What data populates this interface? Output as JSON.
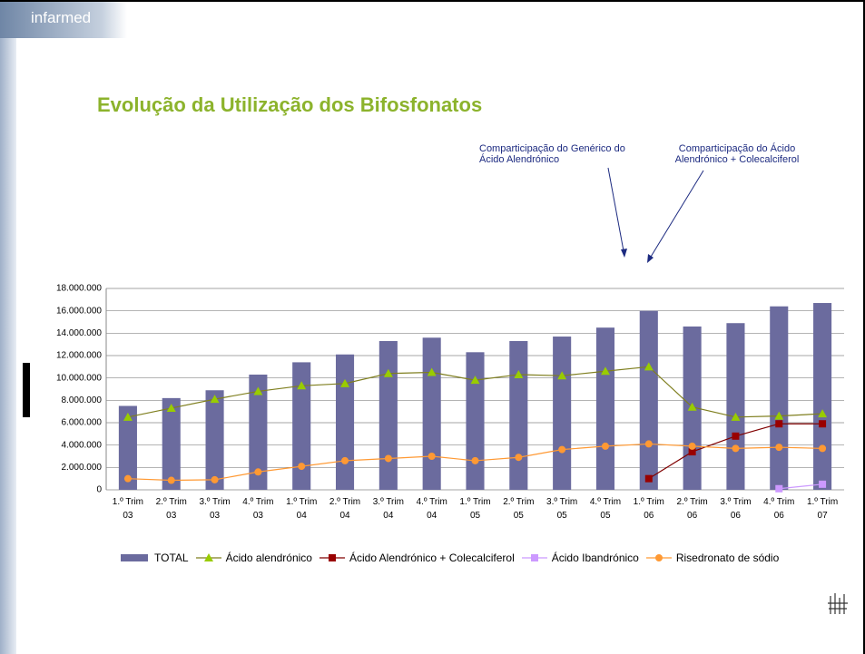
{
  "header": {
    "logo": "infarmed"
  },
  "chart_data": {
    "type": "bar_line",
    "title": "Evolução da Utilização dos Bifosfonatos",
    "annotations": [
      "Comparticipação do Genérico do Ácido Alendrónico",
      "Comparticipação do Ácido Alendrónico + Colecalciferol"
    ],
    "categories": [
      "1.º Trim 03",
      "2.º Trim 03",
      "3.º Trim 03",
      "4.º Trim 03",
      "1.º Trim 04",
      "2.º Trim 04",
      "3.º Trim 04",
      "4.º Trim 04",
      "1.º Trim 05",
      "2.º Trim 05",
      "3.º Trim 05",
      "4.º Trim 05",
      "1.º Trim 06",
      "2.º Trim 06",
      "3.º Trim 06",
      "4.º Trim 06",
      "1.º Trim 07"
    ],
    "ylim": [
      0,
      18000000
    ],
    "yticks": [
      0,
      {
        "value": 2000000,
        "label": "2.000.000"
      },
      {
        "value": 4000000,
        "label": "4.000.000"
      },
      {
        "value": 6000000,
        "label": "6.000.000"
      },
      {
        "value": 8000000,
        "label": "8.000.000"
      },
      {
        "value": 10000000,
        "label": "10.000.000"
      },
      {
        "value": 12000000,
        "label": "12.000.000"
      },
      {
        "value": 14000000,
        "label": "14.000.000"
      },
      {
        "value": 16000000,
        "label": "16.000.000"
      },
      {
        "value": 18000000,
        "label": "18.000.000"
      }
    ],
    "grid": true,
    "series": [
      {
        "name": "TOTAL",
        "type": "bar",
        "color": "#6b6b9e",
        "values": [
          7500000,
          8200000,
          8900000,
          10300000,
          11400000,
          12100000,
          13300000,
          13600000,
          12300000,
          13300000,
          13700000,
          14500000,
          16000000,
          14600000,
          14900000,
          16400000,
          16700000
        ]
      },
      {
        "name": "Ácido alendrónico",
        "type": "line",
        "marker": "triangle",
        "color": "#7f7f1f",
        "marker_color": "#99cc00",
        "values": [
          6500000,
          7300000,
          8100000,
          8800000,
          9300000,
          9500000,
          10400000,
          10500000,
          9800000,
          10300000,
          10200000,
          10600000,
          11000000,
          7400000,
          6500000,
          6600000,
          6800000
        ]
      },
      {
        "name": "Ácido Alendrónico + Colecalciferol",
        "type": "line",
        "marker": "square",
        "color": "#800000",
        "marker_color": "#990000",
        "values": [
          null,
          null,
          null,
          null,
          null,
          null,
          null,
          null,
          null,
          null,
          null,
          null,
          1000000,
          3400000,
          4800000,
          5900000,
          5900000
        ]
      },
      {
        "name": "Ácido Ibandrónico",
        "type": "line",
        "marker": "square",
        "color": "#cc99ff",
        "marker_color": "#cc99ff",
        "values": [
          null,
          null,
          null,
          null,
          null,
          null,
          null,
          null,
          null,
          null,
          null,
          null,
          null,
          null,
          null,
          100000,
          500000
        ]
      },
      {
        "name": "Risedronato de sódio",
        "type": "line",
        "marker": "circle",
        "color": "#ff9933",
        "marker_color": "#ff9933",
        "values": [
          1000000,
          850000,
          900000,
          1600000,
          2100000,
          2600000,
          2800000,
          3000000,
          2600000,
          2900000,
          3600000,
          3900000,
          4100000,
          3900000,
          3700000,
          3800000,
          3700000
        ]
      }
    ]
  }
}
